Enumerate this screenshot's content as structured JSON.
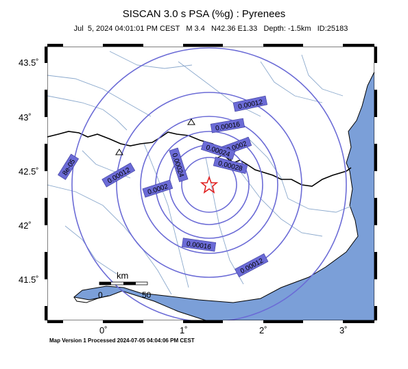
{
  "header": {
    "title": "SISCAN 3.0 s PSA (%g) : Pyrenees",
    "subtitle": "Jul  5, 2024 04:01:01 PM CEST   M 3.4   N42.36 E1.33   Depth: -1.5km   ID:25183"
  },
  "footer": {
    "processed": "Map Version 1 Processed 2024-07-05 04:04:06 PM CEST"
  },
  "axes": {
    "lat_ticks": [
      "43.5˚",
      "43˚",
      "42.5˚",
      "42˚",
      "41.5˚"
    ],
    "lon_ticks": [
      "0˚",
      "1˚",
      "2˚",
      "3˚"
    ]
  },
  "scale_bar": {
    "unit": "km",
    "start": "0",
    "end": "50"
  },
  "contour_labels": [
    "0.00012",
    "0.00016",
    "0.0002",
    "0.00024",
    "0.00028",
    "0.00024",
    "8e-05",
    "0.00012",
    "0.0002",
    "0.00016",
    "0.00012"
  ],
  "colors": {
    "sea": "#7b9fd8",
    "contour": "#6b6bd6",
    "epicenter": "#e02020"
  },
  "epicenter": {
    "lat": 42.36,
    "lon": 1.33
  }
}
